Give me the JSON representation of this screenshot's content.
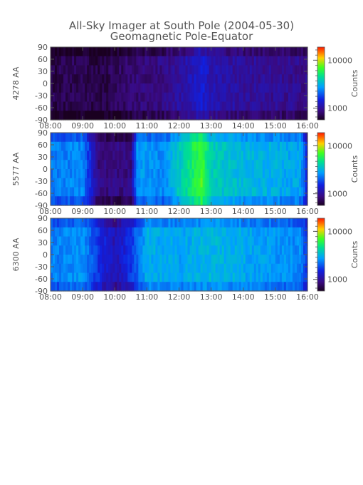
{
  "figure": {
    "title_line1": "All-Sky Imager at South Pole (2004-05-30)",
    "title_line2": "Geomagnetic Pole-Equator",
    "background": "#ffffff",
    "frame_color": "#555555"
  },
  "chart_data": [
    {
      "type": "heatmap",
      "ylabel": "4278 AA",
      "x_ticks": [
        "08:00",
        "09:00",
        "10:00",
        "11:00",
        "12:00",
        "13:00",
        "14:00",
        "15:00",
        "16:00"
      ],
      "y_ticks": [
        90,
        60,
        30,
        0,
        -30,
        -60,
        -90
      ],
      "ylim": [
        -90,
        90
      ],
      "xlim_hours": [
        8,
        16
      ],
      "colorbar": {
        "label": "Counts",
        "ticks": [
          "10000",
          "1000"
        ],
        "scale": "log"
      },
      "intensity_profile": [
        {
          "t": 8.0,
          "level": 0.05
        },
        {
          "t": 9.0,
          "level": 0.07
        },
        {
          "t": 9.5,
          "level": 0.04
        },
        {
          "t": 10.5,
          "level": 0.1
        },
        {
          "t": 11.5,
          "level": 0.13
        },
        {
          "t": 12.2,
          "level": 0.18
        },
        {
          "t": 12.7,
          "level": 0.26
        },
        {
          "t": 13.0,
          "level": 0.2
        },
        {
          "t": 14.0,
          "level": 0.16
        },
        {
          "t": 15.0,
          "level": 0.15
        },
        {
          "t": 15.8,
          "level": 0.14
        },
        {
          "t": 16.0,
          "level": 0.14
        }
      ]
    },
    {
      "type": "heatmap",
      "ylabel": "5577 AA",
      "x_ticks": [
        "08:00",
        "09:00",
        "10:00",
        "11:00",
        "12:00",
        "13:00",
        "14:00",
        "15:00",
        "16:00"
      ],
      "y_ticks": [
        90,
        60,
        30,
        0,
        -30,
        -60,
        -90
      ],
      "ylim": [
        -90,
        90
      ],
      "xlim_hours": [
        8,
        16
      ],
      "colorbar": {
        "label": "Counts",
        "ticks": [
          "10000",
          "1000"
        ],
        "scale": "log"
      },
      "intensity_profile": [
        {
          "t": 8.0,
          "level": 0.4
        },
        {
          "t": 9.0,
          "level": 0.42
        },
        {
          "t": 9.5,
          "level": 0.12
        },
        {
          "t": 10.5,
          "level": 0.12
        },
        {
          "t": 10.7,
          "level": 0.45
        },
        {
          "t": 11.5,
          "level": 0.42
        },
        {
          "t": 12.2,
          "level": 0.58
        },
        {
          "t": 12.7,
          "level": 0.72
        },
        {
          "t": 13.0,
          "level": 0.55
        },
        {
          "t": 14.0,
          "level": 0.5
        },
        {
          "t": 15.0,
          "level": 0.48
        },
        {
          "t": 15.8,
          "level": 0.46
        },
        {
          "t": 16.0,
          "level": 0.25
        }
      ]
    },
    {
      "type": "heatmap",
      "ylabel": "6300 AA",
      "x_ticks": [
        "08:00",
        "09:00",
        "10:00",
        "11:00",
        "12:00",
        "13:00",
        "14:00",
        "15:00",
        "16:00"
      ],
      "y_ticks": [
        90,
        60,
        30,
        0,
        -30,
        -60,
        -90
      ],
      "ylim": [
        -90,
        90
      ],
      "xlim_hours": [
        8,
        16
      ],
      "colorbar": {
        "label": "Counts",
        "ticks": [
          "10000",
          "1000"
        ],
        "scale": "log"
      },
      "intensity_profile": [
        {
          "t": 8.0,
          "level": 0.4
        },
        {
          "t": 9.0,
          "level": 0.44
        },
        {
          "t": 9.5,
          "level": 0.3
        },
        {
          "t": 10.0,
          "level": 0.2
        },
        {
          "t": 10.5,
          "level": 0.3
        },
        {
          "t": 11.0,
          "level": 0.48
        },
        {
          "t": 12.0,
          "level": 0.46
        },
        {
          "t": 13.0,
          "level": 0.5
        },
        {
          "t": 14.0,
          "level": 0.47
        },
        {
          "t": 15.0,
          "level": 0.44
        },
        {
          "t": 15.8,
          "level": 0.42
        },
        {
          "t": 16.0,
          "level": 0.3
        }
      ]
    }
  ]
}
